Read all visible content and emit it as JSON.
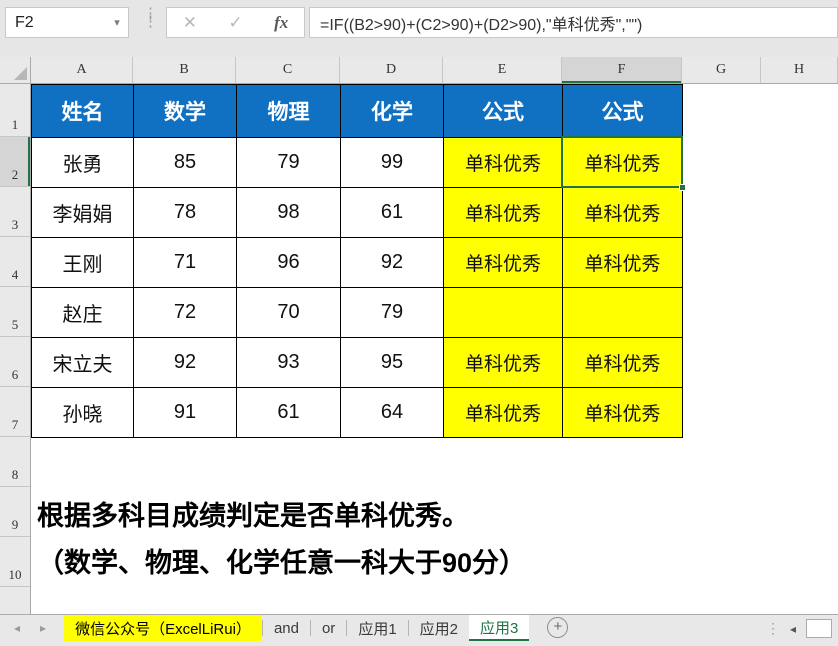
{
  "formula_bar": {
    "name_box_value": "F2",
    "dropdown_icon": "▾",
    "cancel_icon": "✕",
    "enter_icon": "✓",
    "fx_icon": "fx",
    "formula": "=IF((B2>90)+(C2>90)+(D2>90),\"单科优秀\",\"\")"
  },
  "grid": {
    "column_letters": [
      "A",
      "B",
      "C",
      "D",
      "E",
      "F",
      "G",
      "H"
    ],
    "row_numbers": [
      "1",
      "2",
      "3",
      "4",
      "5",
      "6",
      "7",
      "8",
      "9",
      "10"
    ],
    "selected_cell": "F2",
    "selected_column_index": 5,
    "selected_row_index": 1
  },
  "table": {
    "headers": [
      "姓名",
      "数学",
      "物理",
      "化学",
      "公式",
      "公式"
    ],
    "rows": [
      [
        "张勇",
        "85",
        "79",
        "99",
        "单科优秀",
        "单科优秀"
      ],
      [
        "李娟娟",
        "78",
        "98",
        "61",
        "单科优秀",
        "单科优秀"
      ],
      [
        "王刚",
        "71",
        "96",
        "92",
        "单科优秀",
        "单科优秀"
      ],
      [
        "赵庄",
        "72",
        "70",
        "79",
        "",
        ""
      ],
      [
        "宋立夫",
        "92",
        "93",
        "95",
        "单科优秀",
        "单科优秀"
      ],
      [
        "孙晓",
        "91",
        "61",
        "64",
        "单科优秀",
        "单科优秀"
      ]
    ]
  },
  "notes": {
    "line1": "根据多科目成绩判定是否单科优秀。",
    "line2": "（数学、物理、化学任意一科大于90分）"
  },
  "sheet_bar": {
    "nav_left_icon": "◂",
    "nav_right_icon": "▸",
    "tabs": [
      {
        "label": "微信公众号（ExcelLiRui）",
        "style": "yellow"
      },
      {
        "label": "and",
        "style": "normal"
      },
      {
        "label": "or",
        "style": "normal"
      },
      {
        "label": "应用1",
        "style": "normal"
      },
      {
        "label": "应用2",
        "style": "normal"
      },
      {
        "label": "应用3",
        "style": "active"
      }
    ],
    "add_sheet_icon": "+",
    "more_icon": "⋮",
    "scroll_left_icon": "◂"
  },
  "colors": {
    "table_header_fill": "#1070C1",
    "highlight_fill": "#FFFF00",
    "selection_green": "#217346",
    "active_tab_text": "#217346",
    "tab_highlight_fill": "#FFFF00"
  }
}
